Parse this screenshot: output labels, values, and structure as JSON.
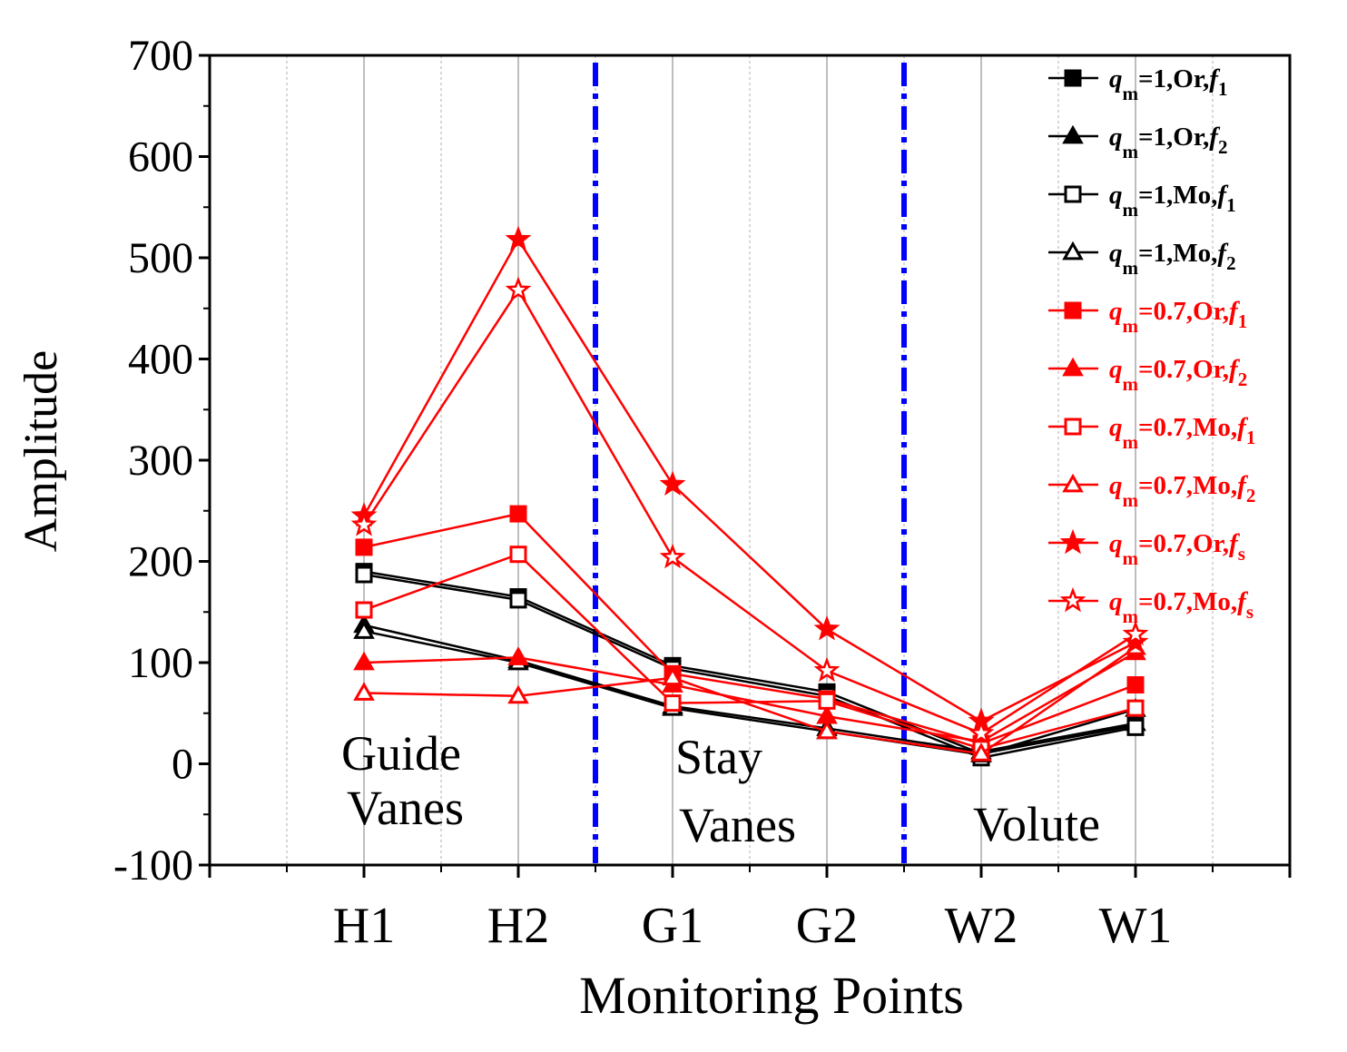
{
  "chart_data": {
    "type": "line",
    "xlabel": "Monitoring Points",
    "ylabel": "Amplitude",
    "categories": [
      "H1",
      "H2",
      "G1",
      "G2",
      "W2",
      "W1"
    ],
    "ylim": [
      -100,
      700
    ],
    "yticks": [
      -100,
      0,
      100,
      200,
      300,
      400,
      500,
      600,
      700
    ],
    "grid": true,
    "legend_position": "top-right",
    "colors": {
      "black": "#000000",
      "red": "#ff0000",
      "divider": "#0000ff"
    },
    "region_labels": [
      {
        "line1": "Guide",
        "line2": "Vanes"
      },
      {
        "line1": "Stay",
        "line2": "Vanes"
      },
      {
        "line1": "Volute",
        "line2": ""
      }
    ],
    "region_dividers_between": [
      [
        "H2",
        "G1"
      ],
      [
        "G2",
        "W2"
      ]
    ],
    "series": [
      {
        "name": "qm=1,Or,f1",
        "q": "q",
        "qsub": "m",
        "cond": "=1,Or,",
        "f": "f",
        "fsub": "1",
        "color": "#000000",
        "marker": "square",
        "filled": true,
        "values": [
          190,
          165,
          97,
          71,
          10,
          38
        ]
      },
      {
        "name": "qm=1,Or,f2",
        "q": "q",
        "qsub": "m",
        "cond": "=1,Or,",
        "f": "f",
        "fsub": "2",
        "color": "#000000",
        "marker": "triangle",
        "filled": true,
        "values": [
          137,
          102,
          57,
          35,
          12,
          40
        ]
      },
      {
        "name": "qm=1,Mo,f1",
        "q": "q",
        "qsub": "m",
        "cond": "=1,Mo,",
        "f": "f",
        "fsub": "1",
        "color": "#000000",
        "marker": "square",
        "filled": false,
        "values": [
          187,
          162,
          94,
          67,
          6,
          36
        ]
      },
      {
        "name": "qm=1,Mo,f2",
        "q": "q",
        "qsub": "m",
        "cond": "=1,Mo,",
        "f": "f",
        "fsub": "2",
        "color": "#000000",
        "marker": "triangle",
        "filled": false,
        "values": [
          131,
          100,
          55,
          32,
          9,
          54
        ]
      },
      {
        "name": "qm=0.7,Or,f1",
        "q": "q",
        "qsub": "m",
        "cond": "=0.7,Or,",
        "f": "f",
        "fsub": "1",
        "color": "#ff0000",
        "marker": "square",
        "filled": true,
        "values": [
          214,
          247,
          89,
          64,
          20,
          78
        ]
      },
      {
        "name": "qm=0.7,Or,f2",
        "q": "q",
        "qsub": "m",
        "cond": "=0.7,Or,",
        "f": "f",
        "fsub": "2",
        "color": "#ff0000",
        "marker": "triangle",
        "filled": true,
        "values": [
          100,
          105,
          78,
          47,
          22,
          110
        ]
      },
      {
        "name": "qm=0.7,Mo,f1",
        "q": "q",
        "qsub": "m",
        "cond": "=0.7,Mo,",
        "f": "f",
        "fsub": "1",
        "color": "#ff0000",
        "marker": "square",
        "filled": false,
        "values": [
          152,
          207,
          60,
          62,
          15,
          55
        ]
      },
      {
        "name": "qm=0.7,Mo,f2",
        "q": "q",
        "qsub": "m",
        "cond": "=0.7,Mo,",
        "f": "f",
        "fsub": "2",
        "color": "#ff0000",
        "marker": "triangle",
        "filled": false,
        "values": [
          70,
          67,
          85,
          32,
          10,
          115
        ]
      },
      {
        "name": "qm=0.7,Or,fs",
        "q": "q",
        "qsub": "m",
        "cond": "=0.7,Or,",
        "f": "f",
        "fsub": "s",
        "color": "#ff0000",
        "marker": "star",
        "filled": true,
        "values": [
          245,
          518,
          276,
          133,
          42,
          120
        ]
      },
      {
        "name": "qm=0.7,Mo,fs",
        "q": "q",
        "qsub": "m",
        "cond": "=0.7,Mo,",
        "f": "f",
        "fsub": "s",
        "color": "#ff0000",
        "marker": "star",
        "filled": false,
        "values": [
          236,
          468,
          204,
          92,
          30,
          128
        ]
      }
    ]
  }
}
